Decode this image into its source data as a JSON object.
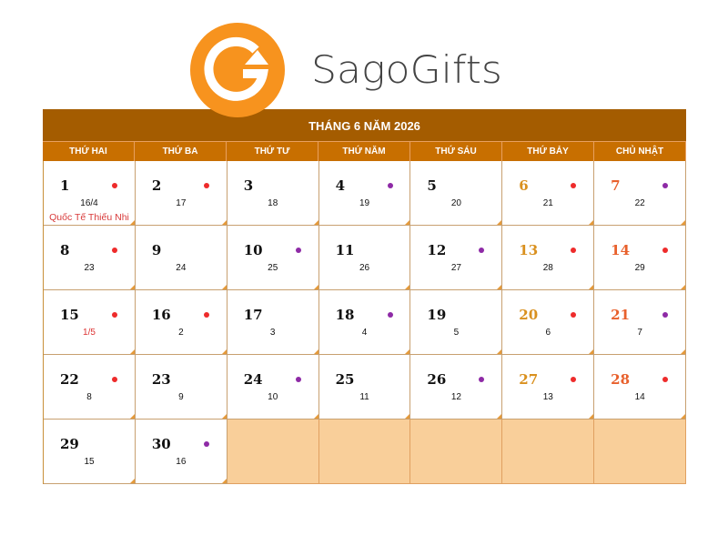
{
  "brand": {
    "name": "SagoGifts",
    "logo_color": "#f7931e"
  },
  "calendar": {
    "title": "THÁNG 6 NĂM 2026",
    "weekdays": [
      "THỨ HAI",
      "THỨ BA",
      "THỨ TƯ",
      "THỨ NĂM",
      "THỨ SÁU",
      "THỨ BẢY",
      "CHỦ NHẬT"
    ],
    "colors": {
      "header": "#a45c00",
      "weekday_bar": "#c86f00",
      "saturday": "#d9901e",
      "sunday": "#e8602c",
      "dot_red": "#ee2b2b",
      "dot_purple": "#8e2aa6",
      "empty_cell": "#f9cf9a"
    },
    "days": [
      {
        "day": "1",
        "lunar": "16/4",
        "dot": "red",
        "holiday": "Quốc Tế Thiếu Nhi"
      },
      {
        "day": "2",
        "lunar": "17",
        "dot": "red"
      },
      {
        "day": "3",
        "lunar": "18"
      },
      {
        "day": "4",
        "lunar": "19",
        "dot": "purple"
      },
      {
        "day": "5",
        "lunar": "20"
      },
      {
        "day": "6",
        "lunar": "21",
        "dot": "red"
      },
      {
        "day": "7",
        "lunar": "22",
        "dot": "purple"
      },
      {
        "day": "8",
        "lunar": "23",
        "dot": "red"
      },
      {
        "day": "9",
        "lunar": "24"
      },
      {
        "day": "10",
        "lunar": "25",
        "dot": "purple"
      },
      {
        "day": "11",
        "lunar": "26"
      },
      {
        "day": "12",
        "lunar": "27",
        "dot": "purple"
      },
      {
        "day": "13",
        "lunar": "28",
        "dot": "red"
      },
      {
        "day": "14",
        "lunar": "29",
        "dot": "red"
      },
      {
        "day": "15",
        "lunar": "1/5",
        "dot": "red",
        "lunar_highlight": true
      },
      {
        "day": "16",
        "lunar": "2",
        "dot": "red"
      },
      {
        "day": "17",
        "lunar": "3"
      },
      {
        "day": "18",
        "lunar": "4",
        "dot": "purple"
      },
      {
        "day": "19",
        "lunar": "5"
      },
      {
        "day": "20",
        "lunar": "6",
        "dot": "red"
      },
      {
        "day": "21",
        "lunar": "7",
        "dot": "purple"
      },
      {
        "day": "22",
        "lunar": "8",
        "dot": "red"
      },
      {
        "day": "23",
        "lunar": "9"
      },
      {
        "day": "24",
        "lunar": "10",
        "dot": "purple"
      },
      {
        "day": "25",
        "lunar": "11"
      },
      {
        "day": "26",
        "lunar": "12",
        "dot": "purple"
      },
      {
        "day": "27",
        "lunar": "13",
        "dot": "red"
      },
      {
        "day": "28",
        "lunar": "14",
        "dot": "red"
      },
      {
        "day": "29",
        "lunar": "15"
      },
      {
        "day": "30",
        "lunar": "16",
        "dot": "purple"
      }
    ],
    "trailing_empty_cells": 5
  }
}
